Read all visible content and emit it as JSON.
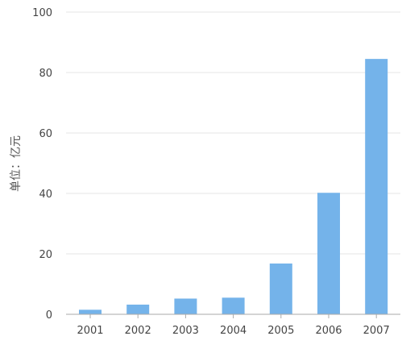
{
  "chart_data": {
    "type": "bar",
    "title": "",
    "xlabel": "",
    "ylabel": "单位：亿元",
    "categories": [
      "2001",
      "2002",
      "2003",
      "2004",
      "2005",
      "2006",
      "2007"
    ],
    "values": [
      1.5,
      3.2,
      5.2,
      5.5,
      16.8,
      40.2,
      84.5
    ],
    "ylim": [
      0,
      100
    ],
    "yticks": [
      "0",
      "20",
      "40",
      "60",
      "80",
      "100"
    ],
    "grid": true,
    "legend": "none",
    "bar_color": "#74b3ea",
    "grid_color": "#e6e6e6",
    "axis_color": "#aaaaaa"
  }
}
